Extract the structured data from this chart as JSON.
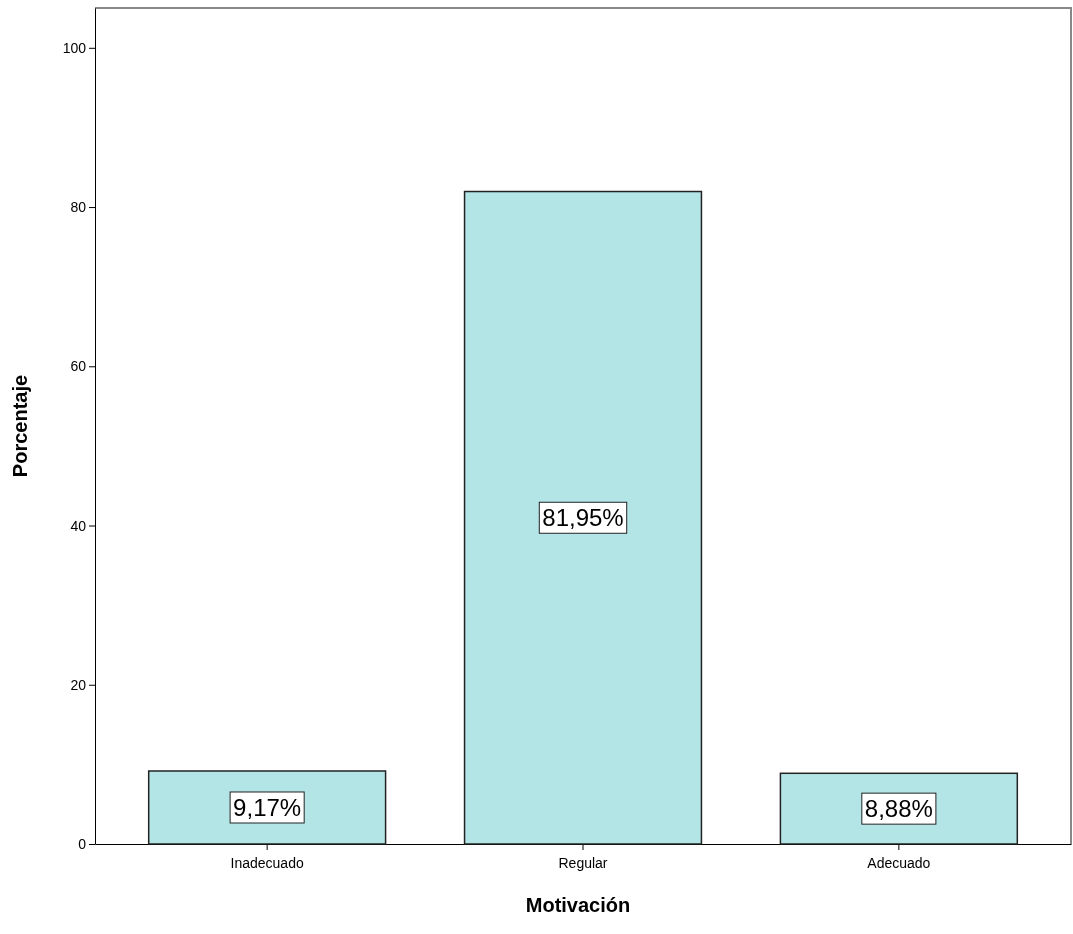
{
  "chart_data": {
    "type": "bar",
    "xlabel": "Motivación",
    "ylabel": "Porcentaje",
    "categories": [
      "Inadecuado",
      "Regular",
      "Adecuado"
    ],
    "values": [
      9.17,
      81.95,
      8.88
    ],
    "value_labels": [
      "9,17%",
      "81,95%",
      "8,88%"
    ],
    "color": "#b4e5e6",
    "ylim": [
      0,
      105
    ],
    "yticks": [
      0,
      20,
      40,
      60,
      80,
      100
    ]
  }
}
